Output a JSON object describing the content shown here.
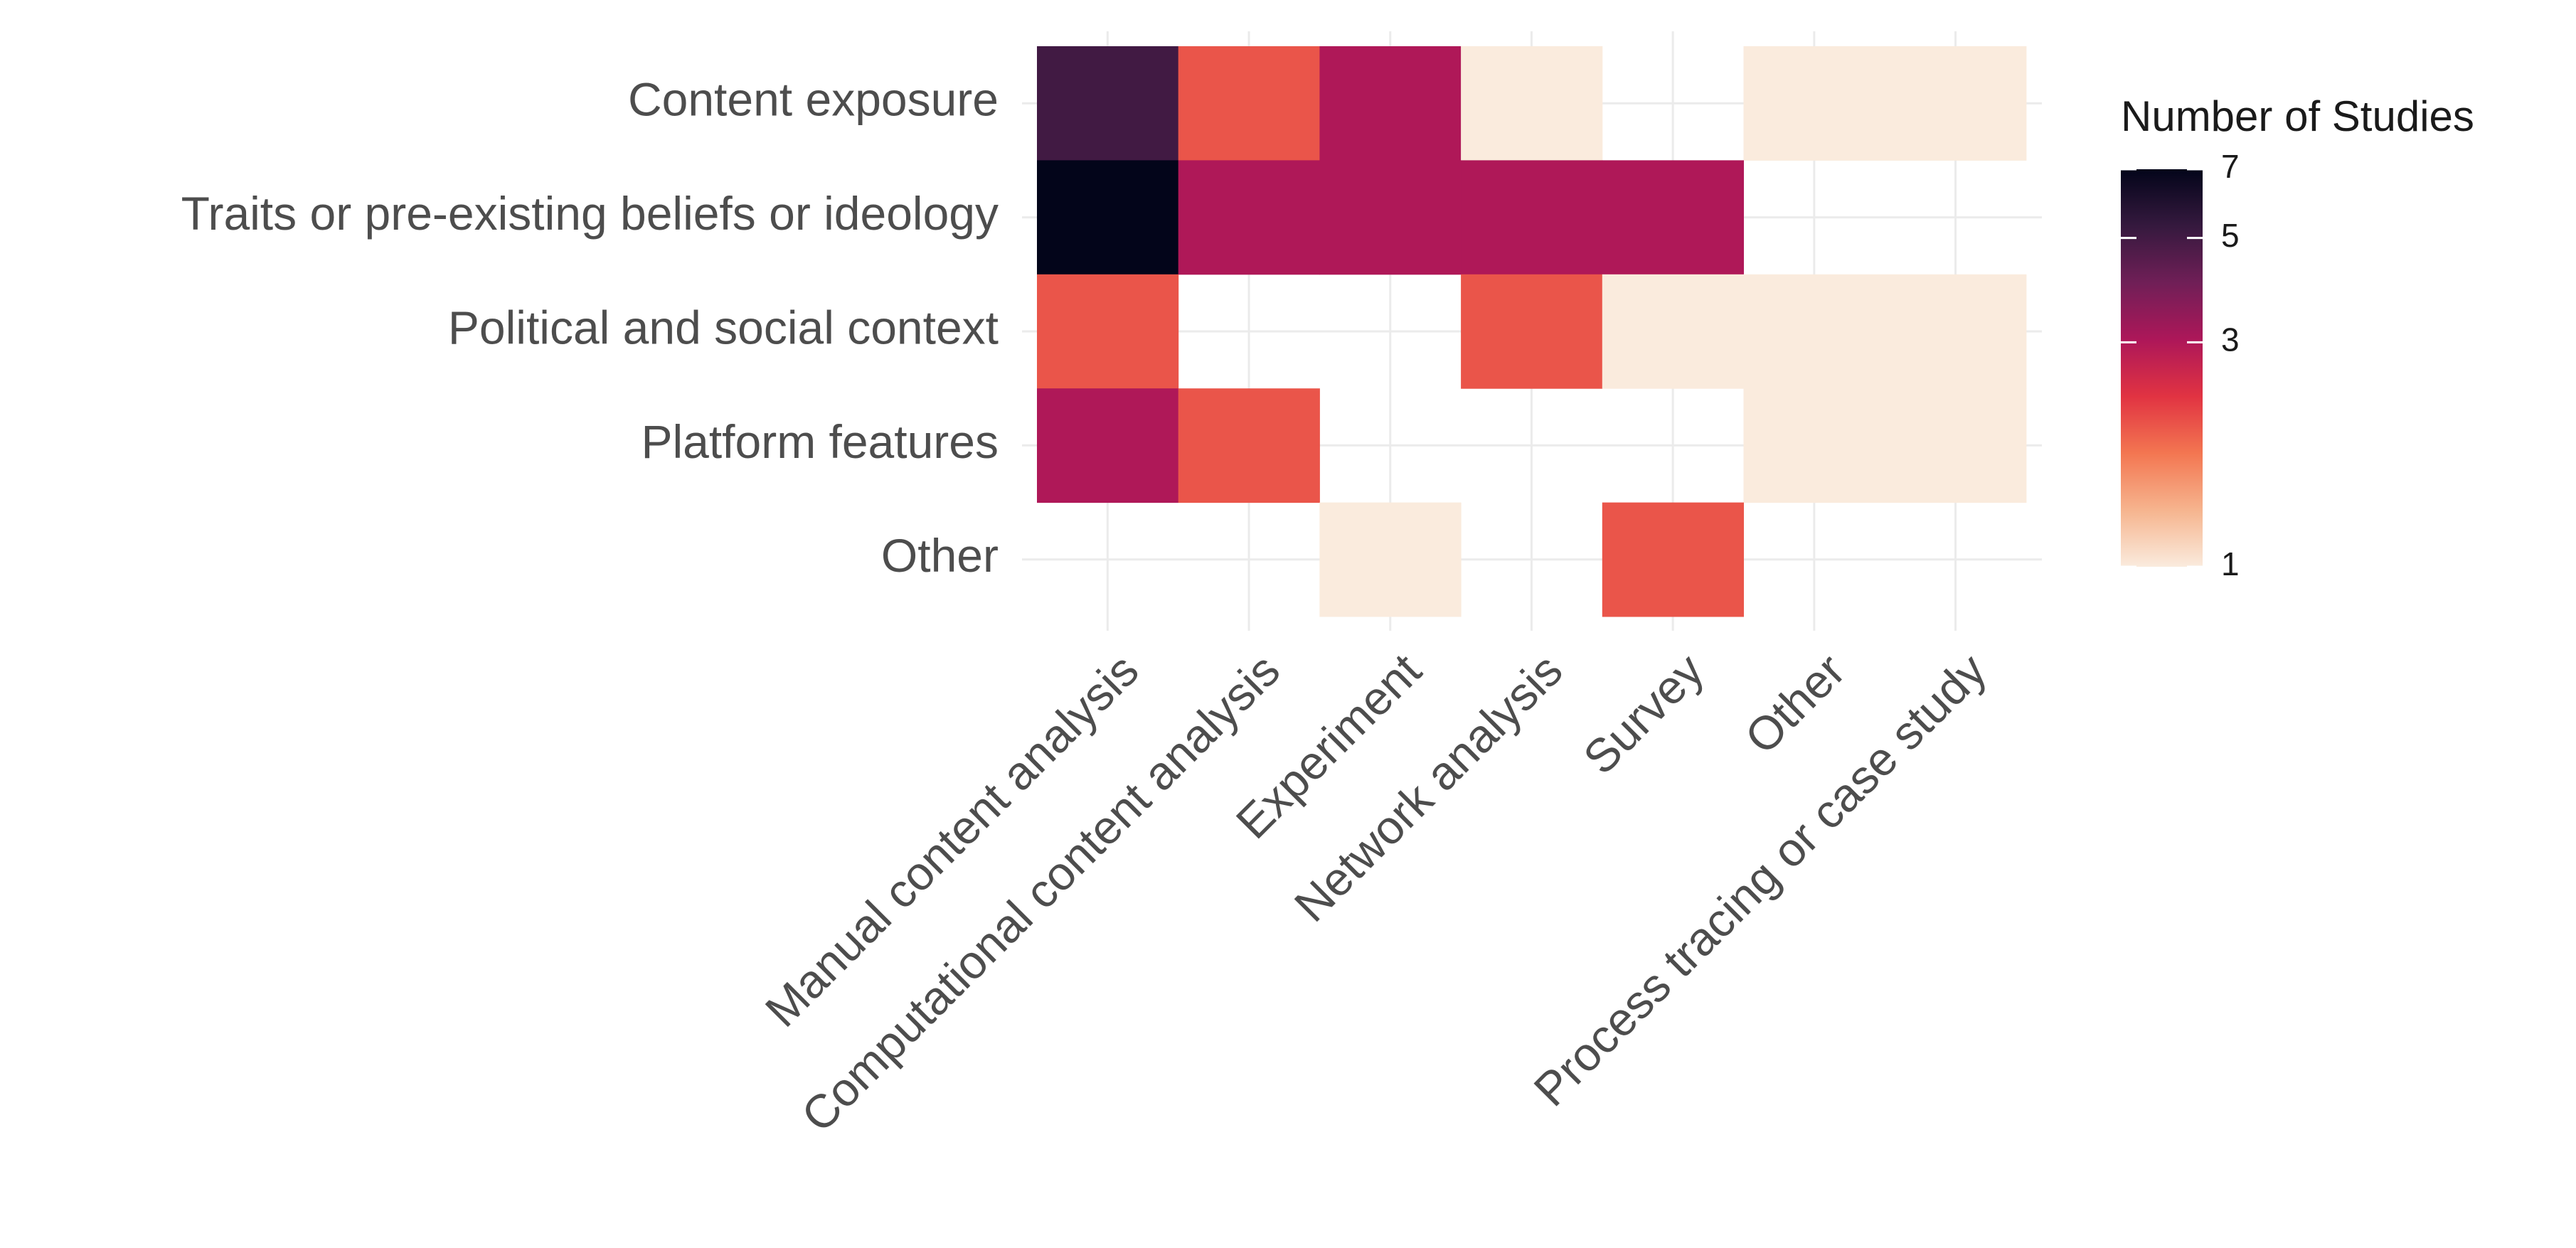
{
  "chart_data": {
    "type": "heatmap",
    "x_categories": [
      "Manual content analysis",
      "Computational content analysis",
      "Experiment",
      "Network analysis",
      "Survey",
      "Other",
      "Process tracing or case study"
    ],
    "y_categories": [
      "Content exposure",
      "Traits or pre-existing beliefs or ideology",
      "Political and social context",
      "Platform features",
      "Other"
    ],
    "values": [
      [
        5,
        2,
        3,
        1,
        null,
        1,
        1
      ],
      [
        7,
        3,
        3,
        3,
        3,
        null,
        null
      ],
      [
        2,
        null,
        null,
        2,
        1,
        1,
        1
      ],
      [
        3,
        2,
        null,
        null,
        null,
        1,
        1
      ],
      [
        null,
        null,
        1,
        null,
        2,
        null,
        null
      ]
    ],
    "grid": true,
    "color_scale": {
      "title": "Number of Studies",
      "lim": [
        1,
        7
      ],
      "ticks": [
        1,
        3,
        5,
        7
      ],
      "log": true,
      "colors": [
        "#faebdd",
        "#f6b48e",
        "#f37651",
        "#e13342",
        "#ad1759",
        "#701f57",
        "#35193e",
        "#03051a"
      ]
    }
  }
}
